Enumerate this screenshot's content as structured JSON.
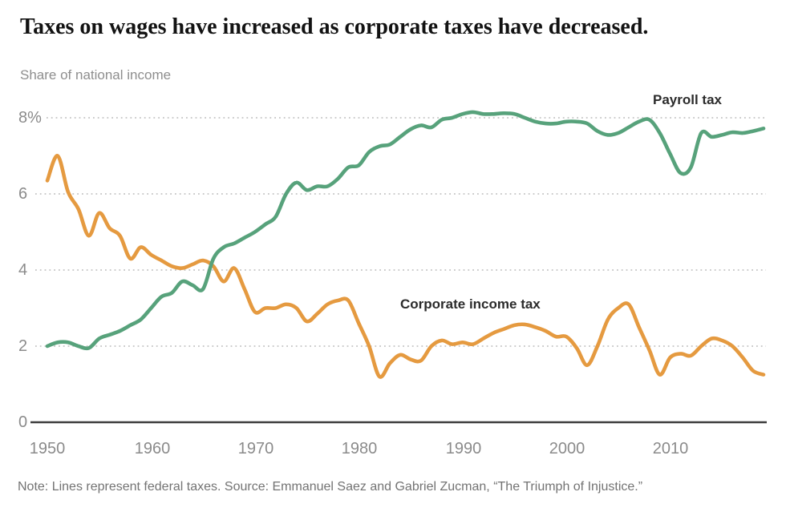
{
  "header": {
    "title": "Taxes on wages have increased as corporate taxes have decreased.",
    "subtitle": "Share of national income"
  },
  "footer": {
    "note": "Note: Lines represent federal taxes. Source: Emmanuel Saez and Gabriel Zucman, “The Triumph of Injustice.”"
  },
  "chart_data": {
    "type": "line",
    "title": "Taxes on wages have increased as corporate taxes have decreased.",
    "ylabel": "Share of national income",
    "xlabel": "",
    "xlim": [
      1950,
      2019
    ],
    "ylim": [
      0,
      8.6
    ],
    "grid": "horizontal-dashed",
    "legend_position": "inline-labels",
    "axis_color": "#3d3d3d",
    "gridline_color": "#c4c4c4",
    "ytick_values": [
      8,
      6,
      4,
      2,
      0
    ],
    "ytick_labels": [
      "8%",
      "6",
      "4",
      "2",
      "0"
    ],
    "xtick_values": [
      1950,
      1960,
      1970,
      1980,
      1990,
      2000,
      2010
    ],
    "xtick_labels": [
      "1950",
      "1960",
      "1970",
      "1980",
      "1990",
      "2000",
      "2010"
    ],
    "x": [
      1950,
      1951,
      1952,
      1953,
      1954,
      1955,
      1956,
      1957,
      1958,
      1959,
      1960,
      1961,
      1962,
      1963,
      1964,
      1965,
      1966,
      1967,
      1968,
      1969,
      1970,
      1971,
      1972,
      1973,
      1974,
      1975,
      1976,
      1977,
      1978,
      1979,
      1980,
      1981,
      1982,
      1983,
      1984,
      1985,
      1986,
      1987,
      1988,
      1989,
      1990,
      1991,
      1992,
      1993,
      1994,
      1995,
      1996,
      1997,
      1998,
      1999,
      2000,
      2001,
      2002,
      2003,
      2004,
      2005,
      2006,
      2007,
      2008,
      2009,
      2010,
      2011,
      2012,
      2013,
      2014,
      2015,
      2016,
      2017,
      2018,
      2019
    ],
    "series": [
      {
        "name": "Payroll tax",
        "color": "#57a27b",
        "values": [
          2.0,
          2.1,
          2.1,
          2.0,
          1.95,
          2.2,
          2.3,
          2.4,
          2.55,
          2.7,
          3.0,
          3.3,
          3.4,
          3.7,
          3.6,
          3.5,
          4.3,
          4.6,
          4.7,
          4.85,
          5.0,
          5.2,
          5.4,
          6.0,
          6.3,
          6.1,
          6.2,
          6.2,
          6.4,
          6.7,
          6.75,
          7.1,
          7.25,
          7.3,
          7.5,
          7.7,
          7.8,
          7.75,
          7.95,
          8.0,
          8.1,
          8.15,
          8.1,
          8.1,
          8.12,
          8.1,
          8.0,
          7.9,
          7.85,
          7.85,
          7.9,
          7.9,
          7.85,
          7.65,
          7.55,
          7.6,
          7.75,
          7.9,
          7.95,
          7.6,
          7.05,
          6.55,
          6.7,
          7.6,
          7.5,
          7.55,
          7.62,
          7.6,
          7.65,
          7.72
        ]
      },
      {
        "name": "Corporate income tax",
        "color": "#e59a40",
        "values": [
          6.35,
          7.0,
          6.05,
          5.6,
          4.9,
          5.5,
          5.1,
          4.9,
          4.3,
          4.6,
          4.4,
          4.25,
          4.1,
          4.05,
          4.15,
          4.25,
          4.1,
          3.7,
          4.05,
          3.5,
          2.9,
          3.0,
          3.0,
          3.1,
          3.0,
          2.65,
          2.85,
          3.1,
          3.2,
          3.2,
          2.6,
          2.0,
          1.2,
          1.55,
          1.77,
          1.65,
          1.62,
          2.0,
          2.15,
          2.05,
          2.1,
          2.05,
          2.2,
          2.35,
          2.45,
          2.55,
          2.57,
          2.5,
          2.4,
          2.25,
          2.25,
          1.95,
          1.5,
          2.0,
          2.7,
          3.0,
          3.1,
          2.5,
          1.9,
          1.25,
          1.7,
          1.8,
          1.75,
          2.0,
          2.2,
          2.15,
          2.0,
          1.7,
          1.35,
          1.25
        ]
      }
    ]
  }
}
